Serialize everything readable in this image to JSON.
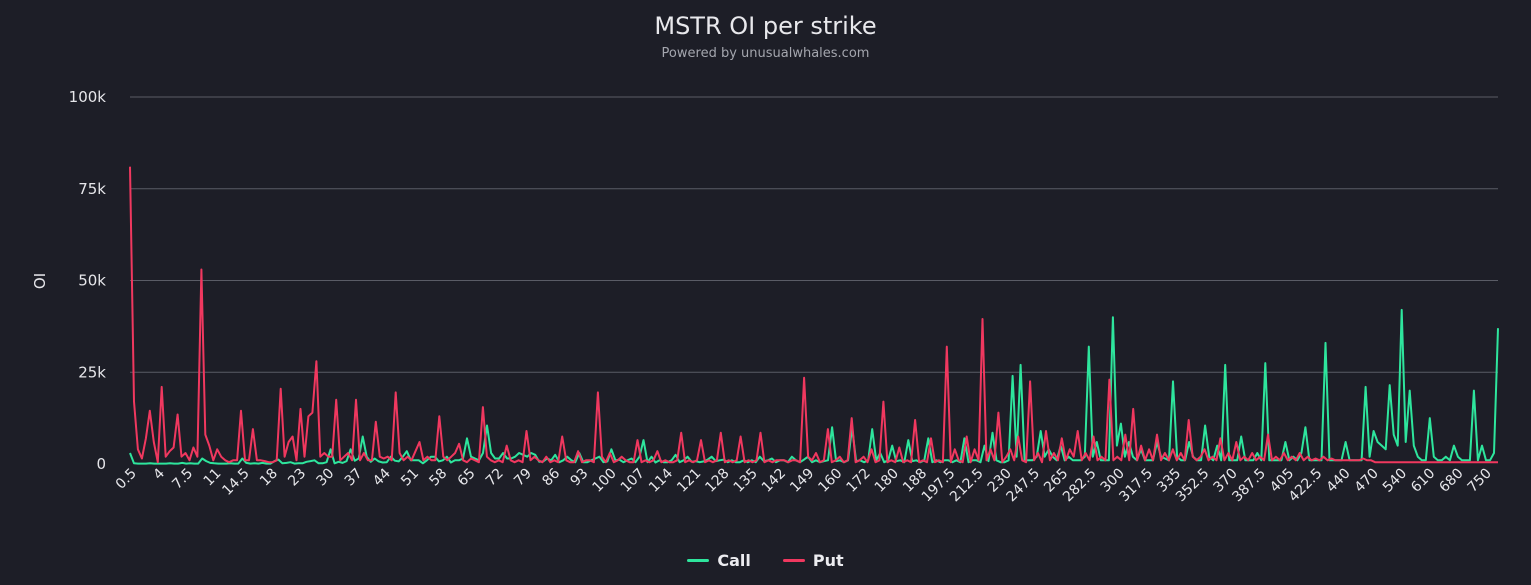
{
  "chart_data": {
    "type": "line",
    "title": "MSTR OI per strike",
    "subtitle": "Powered by unusualwhales.com",
    "ylabel": "OI",
    "xlabel": "",
    "ylim": [
      0,
      100000
    ],
    "yticks": [
      {
        "value": 0,
        "label": "0"
      },
      {
        "value": 25000,
        "label": "25k"
      },
      {
        "value": 50000,
        "label": "50k"
      },
      {
        "value": 75000,
        "label": "75k"
      },
      {
        "value": 100000,
        "label": "100k"
      }
    ],
    "grid": true,
    "legend_position": "bottom-center",
    "x_tick_labels": [
      "0.5",
      "4",
      "7.5",
      "11",
      "14.5",
      "18",
      "23",
      "30",
      "37",
      "44",
      "51",
      "58",
      "65",
      "72",
      "79",
      "86",
      "93",
      "100",
      "107",
      "114",
      "121",
      "128",
      "135",
      "142",
      "149",
      "160",
      "172",
      "180",
      "188",
      "197.5",
      "212.5",
      "230",
      "247.5",
      "265",
      "282.5",
      "300",
      "317.5",
      "335",
      "352.5",
      "370",
      "387.5",
      "405",
      "422.5",
      "440",
      "470",
      "540",
      "610",
      "680",
      "750"
    ],
    "colors": {
      "call": "#2ee59d",
      "put": "#f0385f",
      "grid": "#5a5c66",
      "background": "#1d1e27"
    },
    "series": [
      {
        "name": "Call",
        "color": "#2ee59d",
        "values": [
          3000,
          200,
          100,
          100,
          100,
          200,
          100,
          100,
          100,
          100,
          200,
          100,
          100,
          300,
          100,
          200,
          100,
          100,
          1500,
          800,
          300,
          200,
          100,
          100,
          100,
          200,
          100,
          100,
          1500,
          300,
          100,
          200,
          100,
          300,
          100,
          100,
          800,
          1200,
          200,
          300,
          500,
          100,
          200,
          200,
          600,
          800,
          1000,
          200,
          200,
          500,
          4000,
          200,
          600,
          300,
          800,
          4000,
          900,
          1500,
          7500,
          2000,
          600,
          1500,
          700,
          400,
          500,
          2000,
          900,
          700,
          2000,
          3500,
          1000,
          1000,
          1000,
          200,
          1000,
          2000,
          2000,
          700,
          1000,
          2000,
          400,
          1000,
          1000,
          1500,
          7000,
          2000,
          1500,
          1000,
          3000,
          10500,
          3000,
          1500,
          1500,
          3000,
          1500,
          1500,
          2000,
          3000,
          2500,
          2000,
          3000,
          2500,
          600,
          700,
          1500,
          1000,
          2500,
          500,
          1000,
          2000,
          1000,
          500,
          3000,
          500,
          500,
          1000,
          1500,
          2000,
          500,
          700,
          4000,
          1000,
          1200,
          500,
          1000,
          1500,
          500,
          2000,
          6500,
          500,
          2000,
          400,
          1000,
          500,
          500,
          1000,
          2500,
          500,
          1000,
          2000,
          600,
          800,
          500,
          700,
          1200,
          2000,
          800,
          1000,
          1200,
          500,
          1000,
          500,
          500,
          1000,
          500,
          1000,
          500,
          2000,
          800,
          1000,
          1500,
          500,
          1000,
          1000,
          500,
          2000,
          1000,
          500,
          1200,
          2000,
          500,
          1000,
          500,
          800,
          1000,
          10000,
          800,
          1000,
          500,
          1000,
          10000,
          800,
          1000,
          500,
          1000,
          9500,
          1000,
          3000,
          500,
          1000,
          5000,
          800,
          1000,
          500,
          6500,
          800,
          1000,
          500,
          1000,
          7000,
          500,
          1000,
          500,
          1000,
          1000,
          500,
          1000,
          500,
          7000,
          500,
          1000,
          1000,
          500,
          5000,
          800,
          8500,
          1000,
          500,
          500,
          1000,
          24000,
          2000,
          27000,
          1000,
          1000,
          1000,
          2000,
          9000,
          2000,
          4000,
          2000,
          1000,
          5000,
          1000,
          2000,
          1000,
          1000,
          1000,
          2000,
          32000,
          2000,
          6000,
          1000,
          1000,
          1000,
          40000,
          5000,
          11000,
          2000,
          6000,
          2000,
          1000,
          4000,
          1000,
          1000,
          1000,
          6000,
          2000,
          1500,
          1000,
          22500,
          2000,
          1000,
          1000,
          6000,
          2000,
          1000,
          1000,
          10500,
          2000,
          1000,
          5000,
          1000,
          27000,
          1000,
          1000,
          1000,
          7500,
          1000,
          1000,
          1000,
          3000,
          1000,
          27500,
          1000,
          1000,
          1000,
          1000,
          6000,
          1000,
          2000,
          1000,
          3000,
          10000,
          1000,
          1000,
          1000,
          1000,
          33000,
          1000,
          1000,
          1000,
          1000,
          6000,
          1000,
          1000,
          1000,
          1000,
          21000,
          2000,
          9000,
          6000,
          5000,
          4000,
          21500,
          8000,
          5000,
          42000,
          6000,
          20000,
          5000,
          2000,
          1000,
          1000,
          12500,
          2000,
          1000,
          1000,
          2000,
          1000,
          5000,
          2000,
          1000,
          1000,
          1000,
          20000,
          1000,
          5000,
          1000,
          1000,
          3000,
          37000
        ]
      },
      {
        "name": "Put",
        "color": "#f0385f",
        "values": [
          81000,
          17000,
          4000,
          1500,
          7000,
          14500,
          6000,
          500,
          21000,
          2000,
          3500,
          4500,
          13500,
          2000,
          3000,
          1000,
          4500,
          2000,
          53000,
          8000,
          5000,
          1000,
          4000,
          2000,
          1000,
          500,
          1000,
          1000,
          14500,
          1000,
          1000,
          9500,
          1000,
          1000,
          800,
          500,
          500,
          1000,
          20500,
          2000,
          6000,
          7500,
          1000,
          15000,
          2000,
          13000,
          14000,
          28000,
          2000,
          3000,
          2000,
          2000,
          17500,
          1000,
          2000,
          3000,
          1000,
          17500,
          1000,
          3000,
          1000,
          1000,
          11500,
          2000,
          1500,
          2000,
          1000,
          19500,
          3000,
          1000,
          2000,
          1000,
          3500,
          6000,
          1000,
          2000,
          1000,
          1000,
          13000,
          2000,
          1000,
          2000,
          3000,
          5500,
          1000,
          500,
          1500,
          1000,
          500,
          15500,
          2000,
          1000,
          500,
          1000,
          500,
          5000,
          1000,
          500,
          1000,
          500,
          9000,
          1000,
          2000,
          1000,
          500,
          2000,
          500,
          1000,
          500,
          7500,
          1000,
          500,
          500,
          3500,
          500,
          1000,
          1000,
          500,
          19500,
          2000,
          500,
          3000,
          500,
          1000,
          2000,
          1000,
          500,
          500,
          6500,
          500,
          1000,
          500,
          1000,
          3500,
          500,
          1000,
          500,
          500,
          1000,
          8500,
          500,
          1000,
          500,
          1000,
          6500,
          500,
          1000,
          500,
          1000,
          8500,
          500,
          1000,
          500,
          1000,
          7500,
          500,
          1000,
          500,
          1000,
          8500,
          500,
          1000,
          500,
          1000,
          1000,
          1000,
          500,
          1000,
          1000,
          500,
          23500,
          2000,
          1000,
          3000,
          500,
          1000,
          9500,
          500,
          1000,
          2000,
          500,
          1000,
          12500,
          500,
          1000,
          2000,
          500,
          4000,
          500,
          1000,
          17000,
          500,
          1000,
          500,
          4500,
          500,
          1000,
          500,
          12000,
          500,
          1000,
          500,
          7000,
          500,
          1000,
          500,
          32000,
          500,
          4000,
          1000,
          500,
          7500,
          500,
          4000,
          1000,
          39500,
          1000,
          4000,
          1000,
          14000,
          500,
          2000,
          4000,
          1000,
          7500,
          1000,
          500,
          22500,
          1000,
          3000,
          500,
          9000,
          1000,
          3000,
          1000,
          7000,
          1000,
          4000,
          2000,
          9000,
          1000,
          3000,
          1000,
          7500,
          1000,
          2000,
          1000,
          23000,
          1000,
          2000,
          1000,
          8000,
          1000,
          15000,
          1000,
          5000,
          1000,
          4000,
          1000,
          8000,
          1000,
          3000,
          1000,
          4000,
          1000,
          3000,
          1000,
          12000,
          2000,
          1000,
          2000,
          4000,
          1000,
          2000,
          1000,
          7000,
          1000,
          3000,
          1000,
          6000,
          1000,
          2000,
          1000,
          3000,
          1000,
          2000,
          1000,
          8000,
          1000,
          2000,
          1000,
          3000,
          1000,
          2000,
          1000,
          3000,
          1000,
          2000,
          1000,
          1500,
          1000,
          2000,
          1000,
          1500,
          1000,
          1000,
          1000,
          1000,
          1000,
          1000,
          1000,
          1500,
          1000,
          1000,
          500,
          500,
          500,
          500,
          500,
          500,
          500,
          500,
          500,
          500,
          500,
          500,
          500,
          500,
          500,
          500,
          500,
          500,
          500,
          500,
          500,
          500,
          500,
          500,
          500,
          500,
          500,
          500,
          500,
          500,
          500,
          500
        ]
      }
    ]
  }
}
